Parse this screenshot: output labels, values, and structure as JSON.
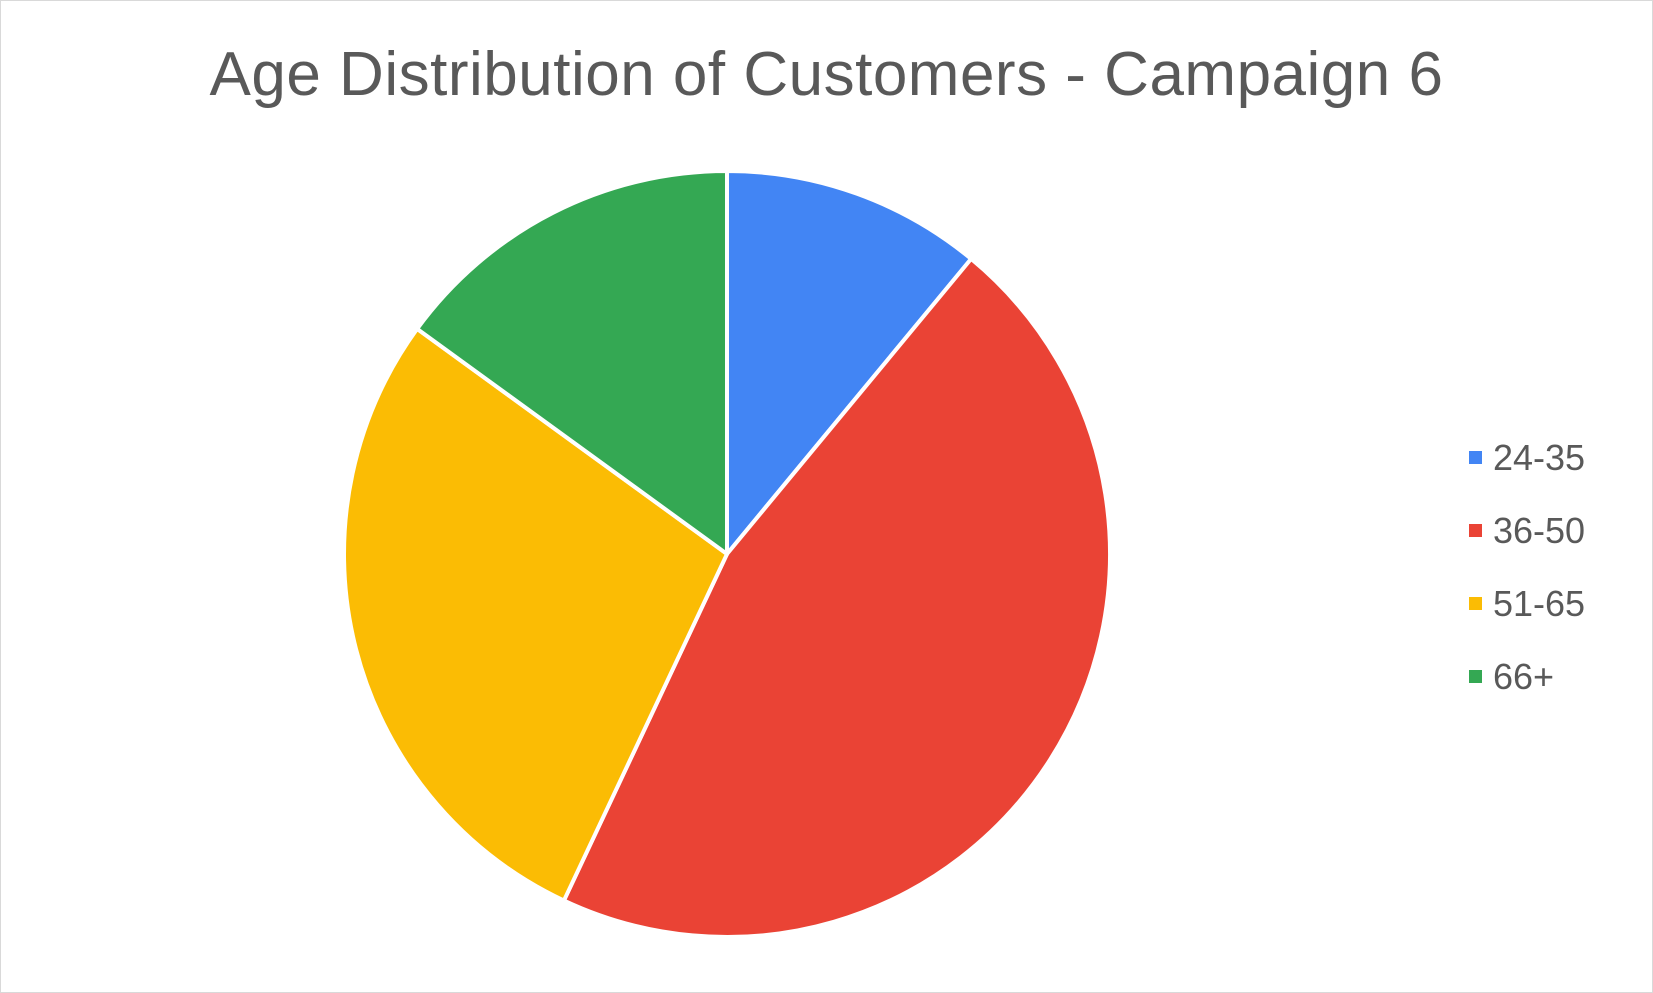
{
  "chart_data": {
    "type": "pie",
    "title": "Age Distribution of Customers - Campaign 6",
    "categories": [
      "24-35",
      "36-50",
      "51-65",
      "66+"
    ],
    "values": [
      11,
      46,
      28,
      15
    ],
    "colors": [
      "#4285f4",
      "#ea4335",
      "#fbbc04",
      "#34a853"
    ],
    "legend_position": "right",
    "start_angle": "12 o'clock",
    "direction": "clockwise"
  }
}
